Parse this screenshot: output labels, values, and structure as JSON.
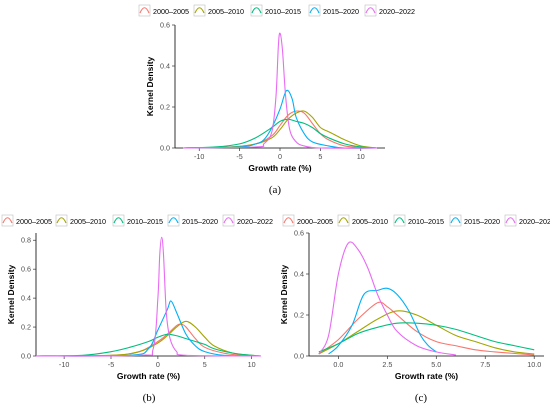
{
  "legend_labels": [
    "2000–2005",
    "2005–2010",
    "2010–2015",
    "2015–2020",
    "2020–2022"
  ],
  "series_colors": [
    "#F8766D",
    "#A3A500",
    "#00BF7D",
    "#00B0F6",
    "#E76BF3"
  ],
  "chart_data": [
    {
      "panel": "(a)",
      "type": "line",
      "xlabel": "Growth rate (%)",
      "ylabel": "Kernel Density",
      "xlim": [
        -13,
        13
      ],
      "ylim": [
        0,
        0.6
      ],
      "xticks": [
        -10,
        -5,
        0,
        5,
        10
      ],
      "yticks": [
        0.0,
        0.2,
        0.4,
        0.6
      ],
      "grid": false,
      "legend": "top",
      "series": [
        {
          "name": "2000–2005",
          "points": [
            [
              -12,
              0
            ],
            [
              -6,
              0.005
            ],
            [
              -3,
              0.02
            ],
            [
              -1,
              0.06
            ],
            [
              0,
              0.11
            ],
            [
              1,
              0.16
            ],
            [
              2,
              0.18
            ],
            [
              3,
              0.17
            ],
            [
              4,
              0.12
            ],
            [
              5,
              0.07
            ],
            [
              6,
              0.04
            ],
            [
              8,
              0.01
            ],
            [
              10,
              0.003
            ],
            [
              12,
              0
            ]
          ]
        },
        {
          "name": "2005–2010",
          "points": [
            [
              -12,
              0
            ],
            [
              -6,
              0.005
            ],
            [
              -3,
              0.02
            ],
            [
              -1,
              0.05
            ],
            [
              0,
              0.09
            ],
            [
              1,
              0.14
            ],
            [
              2,
              0.17
            ],
            [
              3,
              0.18
            ],
            [
              4,
              0.15
            ],
            [
              5,
              0.1
            ],
            [
              6,
              0.08
            ],
            [
              7,
              0.06
            ],
            [
              8,
              0.04
            ],
            [
              10,
              0.01
            ],
            [
              12,
              0
            ]
          ]
        },
        {
          "name": "2010–2015",
          "points": [
            [
              -12,
              0
            ],
            [
              -8,
              0.005
            ],
            [
              -5,
              0.02
            ],
            [
              -3,
              0.05
            ],
            [
              -1,
              0.1
            ],
            [
              0,
              0.13
            ],
            [
              1,
              0.14
            ],
            [
              2,
              0.13
            ],
            [
              3,
              0.12
            ],
            [
              4,
              0.1
            ],
            [
              5,
              0.07
            ],
            [
              6,
              0.05
            ],
            [
              8,
              0.02
            ],
            [
              10,
              0.005
            ],
            [
              12,
              0
            ]
          ]
        },
        {
          "name": "2015–2020",
          "points": [
            [
              -12,
              0
            ],
            [
              -5,
              0.005
            ],
            [
              -3,
              0.02
            ],
            [
              -2,
              0.04
            ],
            [
              -1,
              0.1
            ],
            [
              0,
              0.19
            ],
            [
              0.8,
              0.28
            ],
            [
              1.5,
              0.24
            ],
            [
              2,
              0.15
            ],
            [
              3,
              0.07
            ],
            [
              4,
              0.03
            ],
            [
              6,
              0.01
            ],
            [
              8,
              0
            ],
            [
              12,
              0
            ]
          ]
        },
        {
          "name": "2020–2022",
          "points": [
            [
              -12,
              0
            ],
            [
              -3,
              0.005
            ],
            [
              -2,
              0.02
            ],
            [
              -1,
              0.08
            ],
            [
              -0.5,
              0.25
            ],
            [
              -0.2,
              0.5
            ],
            [
              0,
              0.56
            ],
            [
              0.3,
              0.48
            ],
            [
              0.7,
              0.25
            ],
            [
              1.2,
              0.09
            ],
            [
              2,
              0.03
            ],
            [
              3,
              0.01
            ],
            [
              5,
              0
            ],
            [
              12,
              0
            ]
          ]
        }
      ]
    },
    {
      "panel": "(b)",
      "type": "line",
      "xlabel": "Growth rate (%)",
      "ylabel": "Kernel Density",
      "xlim": [
        -13,
        11
      ],
      "ylim": [
        0,
        0.85
      ],
      "xticks": [
        -10,
        -5,
        0,
        5,
        10
      ],
      "yticks": [
        0.0,
        0.2,
        0.4,
        0.6,
        0.8
      ],
      "grid": false,
      "legend": "top",
      "series": [
        {
          "name": "2000–2005",
          "points": [
            [
              -13,
              0
            ],
            [
              -5,
              0.005
            ],
            [
              -2,
              0.03
            ],
            [
              0,
              0.1
            ],
            [
              1,
              0.15
            ],
            [
              2,
              0.21
            ],
            [
              2.5,
              0.22
            ],
            [
              3,
              0.2
            ],
            [
              4,
              0.12
            ],
            [
              5,
              0.06
            ],
            [
              7,
              0.02
            ],
            [
              9,
              0.005
            ],
            [
              11,
              0
            ]
          ]
        },
        {
          "name": "2005–2010",
          "points": [
            [
              -13,
              0
            ],
            [
              -5,
              0.005
            ],
            [
              -2,
              0.03
            ],
            [
              0,
              0.09
            ],
            [
              1,
              0.14
            ],
            [
              2,
              0.2
            ],
            [
              3,
              0.24
            ],
            [
              4,
              0.2
            ],
            [
              5,
              0.13
            ],
            [
              6,
              0.07
            ],
            [
              8,
              0.02
            ],
            [
              10,
              0.005
            ],
            [
              11,
              0
            ]
          ]
        },
        {
          "name": "2010–2015",
          "points": [
            [
              -13,
              0
            ],
            [
              -8,
              0.005
            ],
            [
              -5,
              0.03
            ],
            [
              -3,
              0.06
            ],
            [
              -1,
              0.1
            ],
            [
              0,
              0.13
            ],
            [
              1,
              0.15
            ],
            [
              2,
              0.14
            ],
            [
              3,
              0.12
            ],
            [
              4,
              0.1
            ],
            [
              5,
              0.08
            ],
            [
              6,
              0.05
            ],
            [
              8,
              0.02
            ],
            [
              10,
              0.005
            ],
            [
              11,
              0
            ]
          ]
        },
        {
          "name": "2015–2020",
          "points": [
            [
              -13,
              0
            ],
            [
              -3,
              0.005
            ],
            [
              -1,
              0.05
            ],
            [
              0,
              0.18
            ],
            [
              1,
              0.32
            ],
            [
              1.4,
              0.38
            ],
            [
              2,
              0.3
            ],
            [
              3,
              0.15
            ],
            [
              4,
              0.07
            ],
            [
              5,
              0.03
            ],
            [
              7,
              0.005
            ],
            [
              11,
              0
            ]
          ]
        },
        {
          "name": "2020–2022",
          "points": [
            [
              -13,
              0
            ],
            [
              -2,
              0.005
            ],
            [
              -0.5,
              0.05
            ],
            [
              0,
              0.4
            ],
            [
              0.2,
              0.7
            ],
            [
              0.4,
              0.82
            ],
            [
              0.6,
              0.7
            ],
            [
              0.9,
              0.3
            ],
            [
              1.3,
              0.12
            ],
            [
              2,
              0.03
            ],
            [
              3,
              0.005
            ],
            [
              11,
              0
            ]
          ]
        }
      ]
    },
    {
      "panel": "(c)",
      "type": "line",
      "xlabel": "Growth rate (%)",
      "ylabel": "Kernel Density",
      "xlim": [
        -1.5,
        10.5
      ],
      "ylim": [
        0,
        0.6
      ],
      "xticks": [
        0.0,
        2.5,
        5.0,
        7.5,
        10.0
      ],
      "yticks": [
        0.0,
        0.2,
        0.4,
        0.6
      ],
      "grid": false,
      "legend": "top",
      "series": [
        {
          "name": "2000–2005",
          "points": [
            [
              -1,
              0.01
            ],
            [
              0,
              0.08
            ],
            [
              1,
              0.18
            ],
            [
              2,
              0.26
            ],
            [
              2.5,
              0.24
            ],
            [
              3,
              0.2
            ],
            [
              4,
              0.12
            ],
            [
              5,
              0.07
            ],
            [
              6,
              0.05
            ],
            [
              7,
              0.03
            ],
            [
              8,
              0.02
            ],
            [
              10,
              0.005
            ]
          ]
        },
        {
          "name": "2005–2010",
          "points": [
            [
              -1,
              0.01
            ],
            [
              0,
              0.06
            ],
            [
              1,
              0.12
            ],
            [
              2,
              0.18
            ],
            [
              3,
              0.22
            ],
            [
              4,
              0.2
            ],
            [
              5,
              0.15
            ],
            [
              6,
              0.1
            ],
            [
              7,
              0.07
            ],
            [
              8,
              0.04
            ],
            [
              9,
              0.02
            ],
            [
              10,
              0.01
            ]
          ]
        },
        {
          "name": "2010–2015",
          "points": [
            [
              -1,
              0.02
            ],
            [
              0,
              0.06
            ],
            [
              1,
              0.11
            ],
            [
              2,
              0.14
            ],
            [
              3,
              0.16
            ],
            [
              4,
              0.16
            ],
            [
              5,
              0.15
            ],
            [
              6,
              0.13
            ],
            [
              7,
              0.1
            ],
            [
              8,
              0.07
            ],
            [
              9,
              0.05
            ],
            [
              10,
              0.03
            ]
          ]
        },
        {
          "name": "2015–2020",
          "points": [
            [
              -0.5,
              0.01
            ],
            [
              0,
              0.05
            ],
            [
              0.7,
              0.15
            ],
            [
              1.3,
              0.3
            ],
            [
              2,
              0.32
            ],
            [
              2.5,
              0.33
            ],
            [
              3,
              0.3
            ],
            [
              3.6,
              0.22
            ],
            [
              4.2,
              0.1
            ],
            [
              4.6,
              0.05
            ],
            [
              5,
              0.02
            ]
          ]
        },
        {
          "name": "2020–2022",
          "points": [
            [
              -1,
              0.01
            ],
            [
              -0.5,
              0.1
            ],
            [
              0,
              0.4
            ],
            [
              0.5,
              0.55
            ],
            [
              1,
              0.52
            ],
            [
              1.5,
              0.43
            ],
            [
              2,
              0.3
            ],
            [
              2.5,
              0.2
            ],
            [
              3,
              0.12
            ],
            [
              4,
              0.05
            ],
            [
              5,
              0.02
            ],
            [
              6,
              0.005
            ]
          ]
        }
      ]
    }
  ]
}
